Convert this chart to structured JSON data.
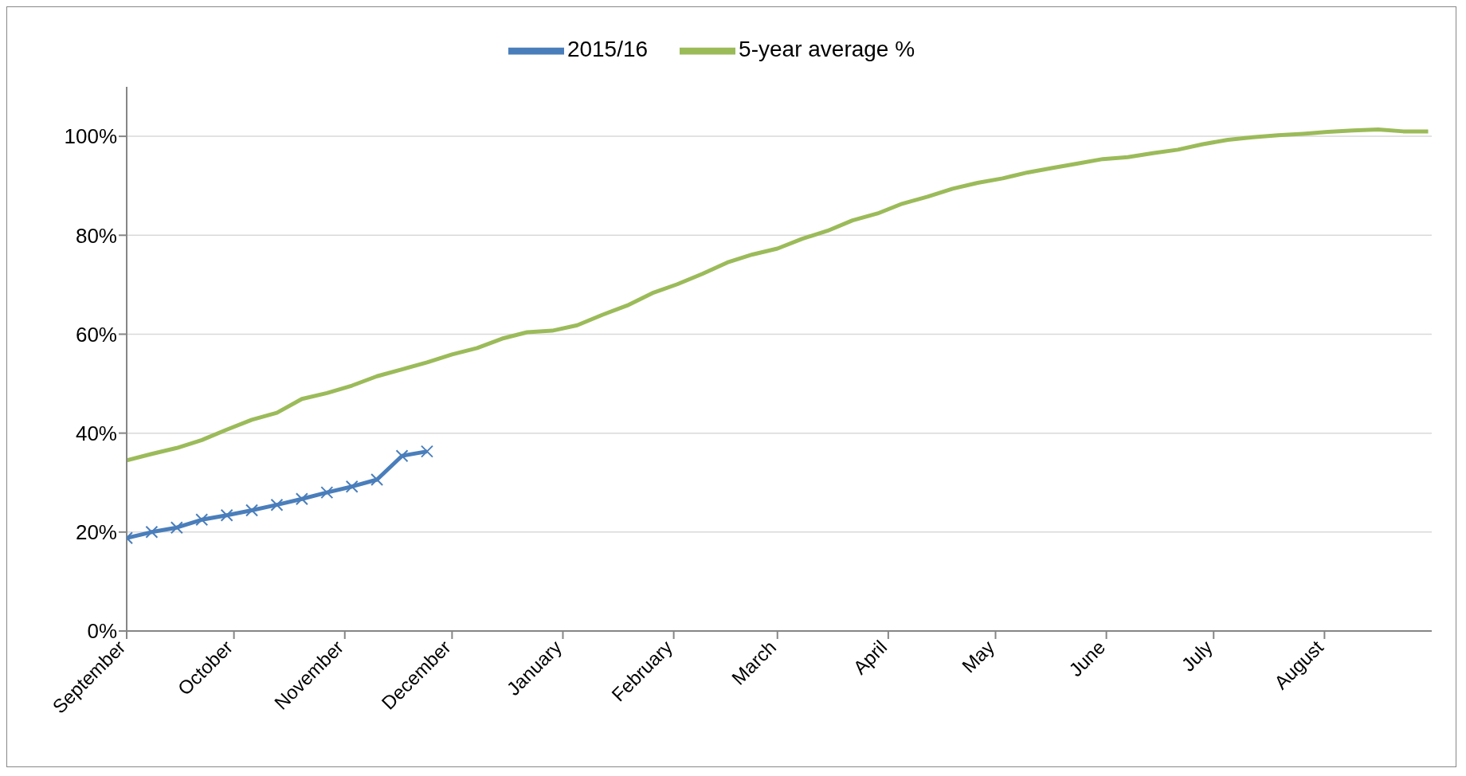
{
  "chart_data": {
    "type": "line",
    "x": [
      "2015-09-01",
      "2015-09-08",
      "2015-09-15",
      "2015-09-22",
      "2015-09-29",
      "2015-10-06",
      "2015-10-13",
      "2015-10-20",
      "2015-10-27",
      "2015-11-03",
      "2015-11-10",
      "2015-11-17",
      "2015-11-24",
      "2015-12-01",
      "2015-12-08",
      "2015-12-15",
      "2015-12-22",
      "2015-12-29",
      "2016-01-05",
      "2016-01-12",
      "2016-01-19",
      "2016-01-26",
      "2016-02-02",
      "2016-02-09",
      "2016-02-16",
      "2016-02-23",
      "2016-03-01",
      "2016-03-08",
      "2016-03-15",
      "2016-03-22",
      "2016-03-29",
      "2016-04-05",
      "2016-04-12",
      "2016-04-19",
      "2016-04-26",
      "2016-05-03",
      "2016-05-10",
      "2016-05-17",
      "2016-05-24",
      "2016-05-31",
      "2016-06-07",
      "2016-06-14",
      "2016-06-21",
      "2016-06-28",
      "2016-07-05",
      "2016-07-12",
      "2016-07-19",
      "2016-07-26",
      "2016-08-02",
      "2016-08-09",
      "2016-08-16",
      "2016-08-23",
      "2016-08-30"
    ],
    "series": [
      {
        "name": "2015/16",
        "color": "#4a7ebb",
        "marker": "cross",
        "x": [
          "2015-09-01",
          "2015-09-08",
          "2015-09-15",
          "2015-09-22",
          "2015-09-29",
          "2015-10-06",
          "2015-10-13",
          "2015-10-20",
          "2015-10-27",
          "2015-11-03",
          "2015-11-10",
          "2015-11-17",
          "2015-11-24"
        ],
        "values": [
          18.8,
          20,
          20.9,
          22.5,
          23.4,
          24.4,
          25.5,
          26.7,
          28,
          29.2,
          30.6,
          35.4,
          36.3
        ]
      },
      {
        "name": "5-year average %",
        "color": "#9bbb59",
        "marker": "none",
        "values": [
          34.5,
          35.8,
          37,
          38.6,
          40.7,
          42.7,
          44.1,
          46.9,
          48.1,
          49.6,
          51.5,
          52.9,
          54.3,
          55.9,
          57.2,
          59.1,
          60.4,
          60.7,
          61.8,
          63.9,
          65.8,
          68.3,
          70.1,
          72.2,
          74.5,
          76.1,
          77.3,
          79.3,
          80.9,
          83,
          84.4,
          86.4,
          87.8,
          89.4,
          90.6,
          91.5,
          92.7,
          93.6,
          94.5,
          95.4,
          95.8,
          96.6,
          97.3,
          98.4,
          99.3,
          99.8,
          100.2,
          100.5,
          100.9,
          101.2,
          101.4,
          101,
          101
        ]
      }
    ],
    "xlim": [
      "2015-09-01",
      "2016-08-31"
    ],
    "xticks": [
      {
        "value": "2015-09-01",
        "label": "September"
      },
      {
        "value": "2015-10-01",
        "label": "October"
      },
      {
        "value": "2015-11-01",
        "label": "November"
      },
      {
        "value": "2015-12-01",
        "label": "December"
      },
      {
        "value": "2016-01-01",
        "label": "January"
      },
      {
        "value": "2016-02-01",
        "label": "February"
      },
      {
        "value": "2016-03-01",
        "label": "March"
      },
      {
        "value": "2016-04-01",
        "label": "April"
      },
      {
        "value": "2016-05-01",
        "label": "May"
      },
      {
        "value": "2016-06-01",
        "label": "June"
      },
      {
        "value": "2016-07-01",
        "label": "July"
      },
      {
        "value": "2016-08-01",
        "label": "August"
      }
    ],
    "ylim": [
      0,
      110
    ],
    "yticks": [
      {
        "value": 0,
        "label": "0%"
      },
      {
        "value": 20,
        "label": "20%"
      },
      {
        "value": 40,
        "label": "40%"
      },
      {
        "value": 60,
        "label": "60%"
      },
      {
        "value": 80,
        "label": "80%"
      },
      {
        "value": 100,
        "label": "100%"
      }
    ],
    "grid": "y",
    "legend": "top",
    "line_style": "solid"
  }
}
